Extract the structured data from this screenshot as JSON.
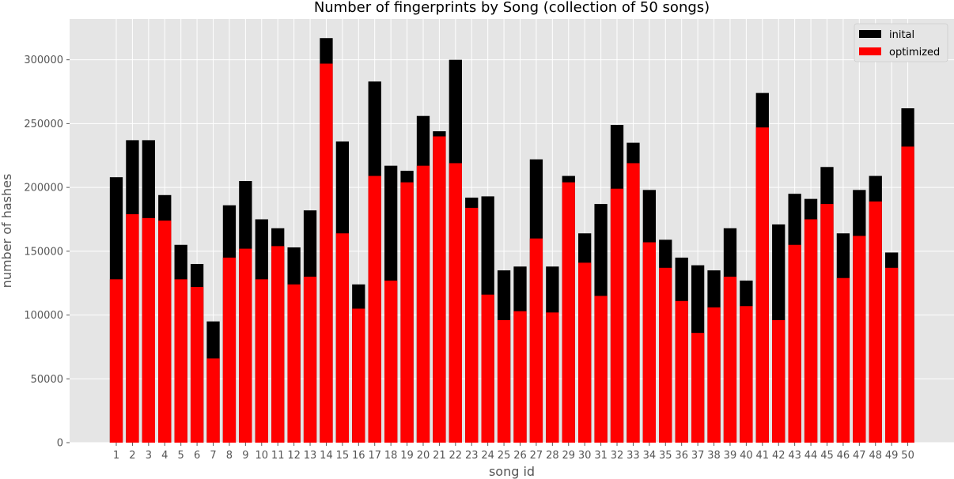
{
  "chart_data": {
    "type": "bar",
    "stacked": "overlay",
    "title": "Number of fingerprints by Song (collection of 50 songs)",
    "xlabel": "song id",
    "ylabel": "number of hashes",
    "ylim": [
      0,
      332000
    ],
    "yticks": [
      0,
      50000,
      100000,
      150000,
      200000,
      250000,
      300000
    ],
    "ytick_labels": [
      "0",
      "50000",
      "100000",
      "150000",
      "200000",
      "250000",
      "300000"
    ],
    "grid": true,
    "background": "#e5e5e5",
    "legend_position": "top-right",
    "categories": [
      "1",
      "2",
      "3",
      "4",
      "5",
      "6",
      "7",
      "8",
      "9",
      "10",
      "11",
      "12",
      "13",
      "14",
      "15",
      "16",
      "17",
      "18",
      "19",
      "20",
      "21",
      "22",
      "23",
      "24",
      "25",
      "26",
      "27",
      "28",
      "29",
      "30",
      "31",
      "32",
      "33",
      "34",
      "35",
      "36",
      "37",
      "38",
      "39",
      "40",
      "41",
      "42",
      "43",
      "44",
      "45",
      "46",
      "47",
      "48",
      "49",
      "50"
    ],
    "series": [
      {
        "name": "inital",
        "color": "#000000",
        "values": [
          208000,
          237000,
          237000,
          194000,
          155000,
          140000,
          95000,
          186000,
          205000,
          175000,
          168000,
          153000,
          182000,
          317000,
          236000,
          124000,
          283000,
          217000,
          213000,
          256000,
          244000,
          300000,
          192000,
          193000,
          135000,
          138000,
          222000,
          138000,
          209000,
          164000,
          187000,
          249000,
          235000,
          198000,
          159000,
          145000,
          139000,
          135000,
          168000,
          127000,
          274000,
          171000,
          195000,
          191000,
          216000,
          164000,
          198000,
          209000,
          149000,
          262000
        ]
      },
      {
        "name": "optimized",
        "color": "#ff0000",
        "values": [
          128000,
          179000,
          176000,
          174000,
          128000,
          122000,
          66000,
          145000,
          152000,
          128000,
          154000,
          124000,
          130000,
          297000,
          164000,
          105000,
          209000,
          127000,
          204000,
          217000,
          240000,
          219000,
          184000,
          116000,
          96000,
          103000,
          160000,
          102000,
          204000,
          141000,
          115000,
          199000,
          219000,
          157000,
          137000,
          111000,
          86000,
          106000,
          130000,
          107000,
          247000,
          96000,
          155000,
          175000,
          187000,
          129000,
          162000,
          189000,
          137000,
          232000
        ]
      }
    ]
  }
}
